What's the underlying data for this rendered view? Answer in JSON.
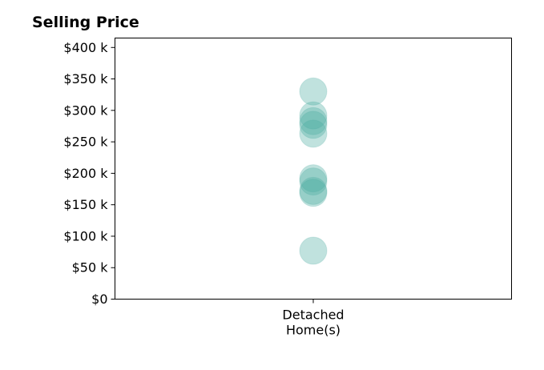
{
  "chart_data": {
    "type": "scatter",
    "title": "Selling Price",
    "xlabel": "",
    "ylabel": "",
    "categories": [
      "Detached\nHome(s)"
    ],
    "ylim": [
      0,
      415000
    ],
    "yticks": [
      0,
      50000,
      100000,
      150000,
      200000,
      250000,
      300000,
      350000,
      400000
    ],
    "ytick_labels": [
      "$0",
      "$50 k",
      "$100 k",
      "$150 k",
      "$200 k",
      "$250 k",
      "$300 k",
      "$350 k",
      "$400 k"
    ],
    "grid": false,
    "legend": "none",
    "color": "#4aaca0",
    "opacity": 0.35,
    "series": [
      {
        "category": "Detached\nHome(s)",
        "values": [
          330000,
          292000,
          283000,
          277000,
          263000,
          192000,
          187000,
          172000,
          169000,
          77000
        ]
      }
    ]
  }
}
